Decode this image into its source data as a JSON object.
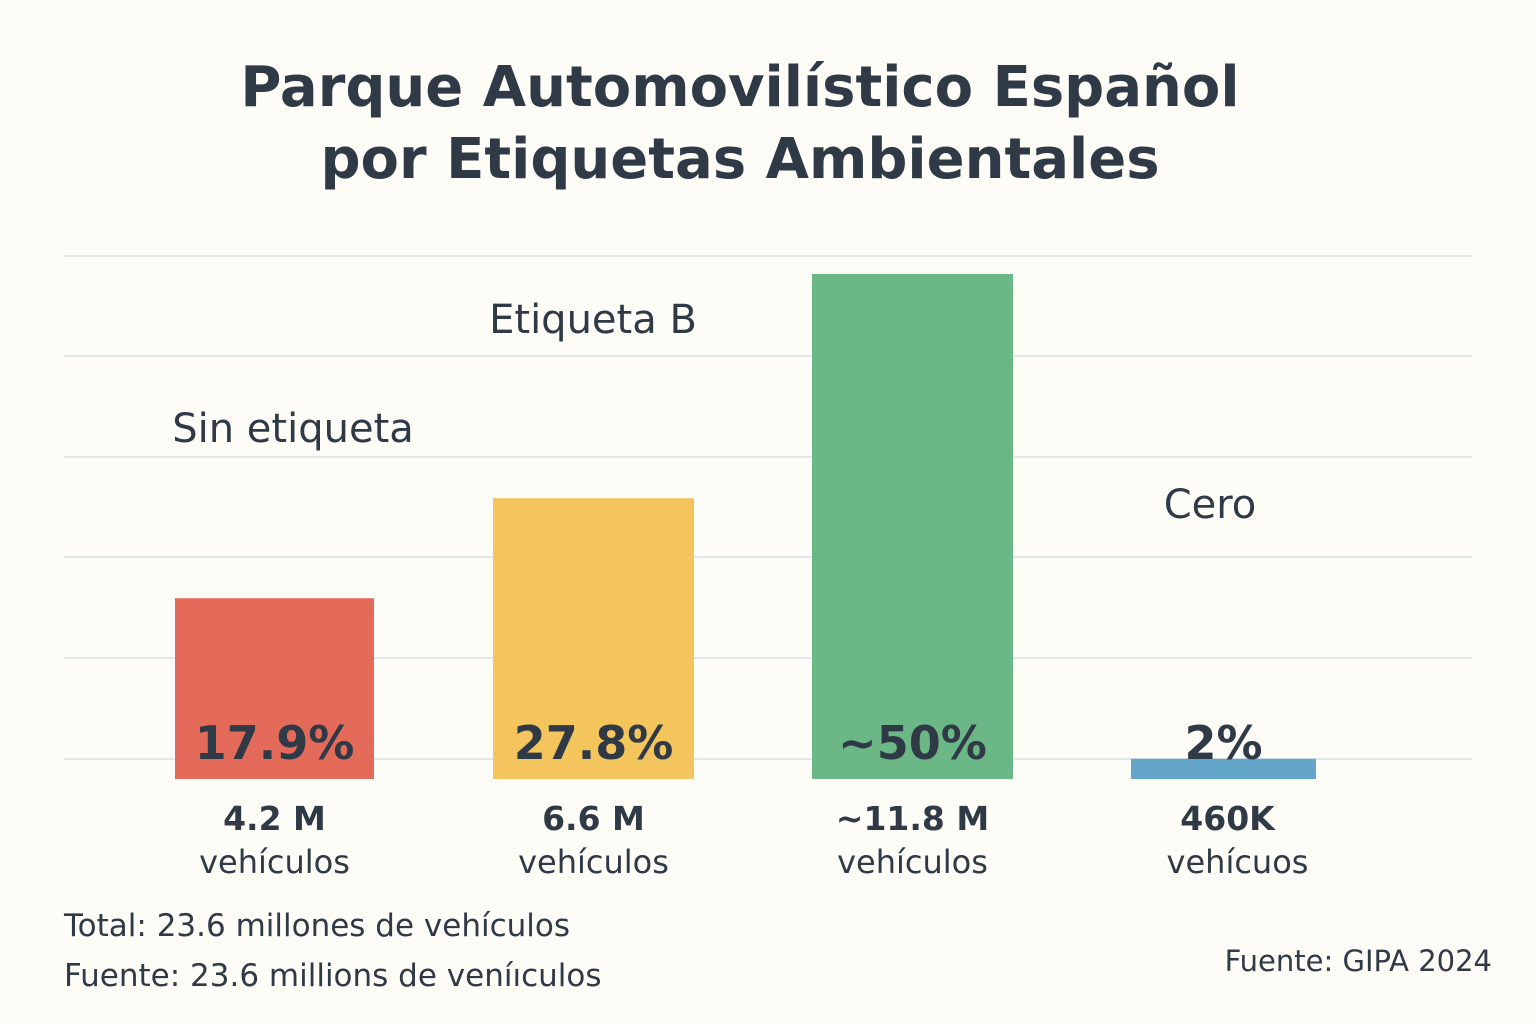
{
  "chart_data": {
    "type": "bar",
    "title_lines": [
      "Parque Automovilístico Español",
      "por Etiquetas Ambientales"
    ],
    "categories": [
      "Sin etiqueta",
      "Etiqueta B",
      "",
      "Cero"
    ],
    "values": [
      17.9,
      27.8,
      50,
      2
    ],
    "value_labels": [
      "17.9%",
      "27.8%",
      "~50%",
      "2%"
    ],
    "count_labels": [
      "4.2 M",
      "6.6 M",
      "~11.8 M",
      "460K"
    ],
    "unit_labels": [
      "vehículos",
      "vehículos",
      "vehículos",
      "vehícuos"
    ],
    "colors": [
      "#e46b5a",
      "#f4c55c",
      "#6bb786",
      "#64a6c9"
    ],
    "grid": true
  },
  "footer": {
    "total": "Total: 23.6 millones de vehículos",
    "note": "Fuente: 23.6 millions de veníıculos",
    "source": "Fuente: GIPA 2024"
  }
}
